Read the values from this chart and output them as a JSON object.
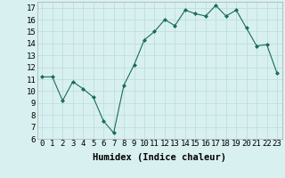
{
  "x": [
    0,
    1,
    2,
    3,
    4,
    5,
    6,
    7,
    8,
    9,
    10,
    11,
    12,
    13,
    14,
    15,
    16,
    17,
    18,
    19,
    20,
    21,
    22,
    23
  ],
  "y": [
    11.2,
    11.2,
    9.2,
    10.8,
    10.2,
    9.5,
    7.5,
    6.5,
    10.5,
    12.2,
    14.3,
    15.0,
    16.0,
    15.5,
    16.8,
    16.5,
    16.3,
    17.2,
    16.3,
    16.8,
    15.3,
    13.8,
    13.9,
    11.5
  ],
  "line_color": "#1a6b5a",
  "marker": "D",
  "marker_size": 2,
  "bg_color": "#d8f0f0",
  "grid_color": "#c0dede",
  "xlabel": "Humidex (Indice chaleur)",
  "ylim": [
    6,
    17.5
  ],
  "yticks": [
    6,
    7,
    8,
    9,
    10,
    11,
    12,
    13,
    14,
    15,
    16,
    17
  ],
  "xticks": [
    0,
    1,
    2,
    3,
    4,
    5,
    6,
    7,
    8,
    9,
    10,
    11,
    12,
    13,
    14,
    15,
    16,
    17,
    18,
    19,
    20,
    21,
    22,
    23
  ],
  "xlim": [
    -0.5,
    23.5
  ],
  "font_size": 6.5,
  "xlabel_fontsize": 7.5
}
